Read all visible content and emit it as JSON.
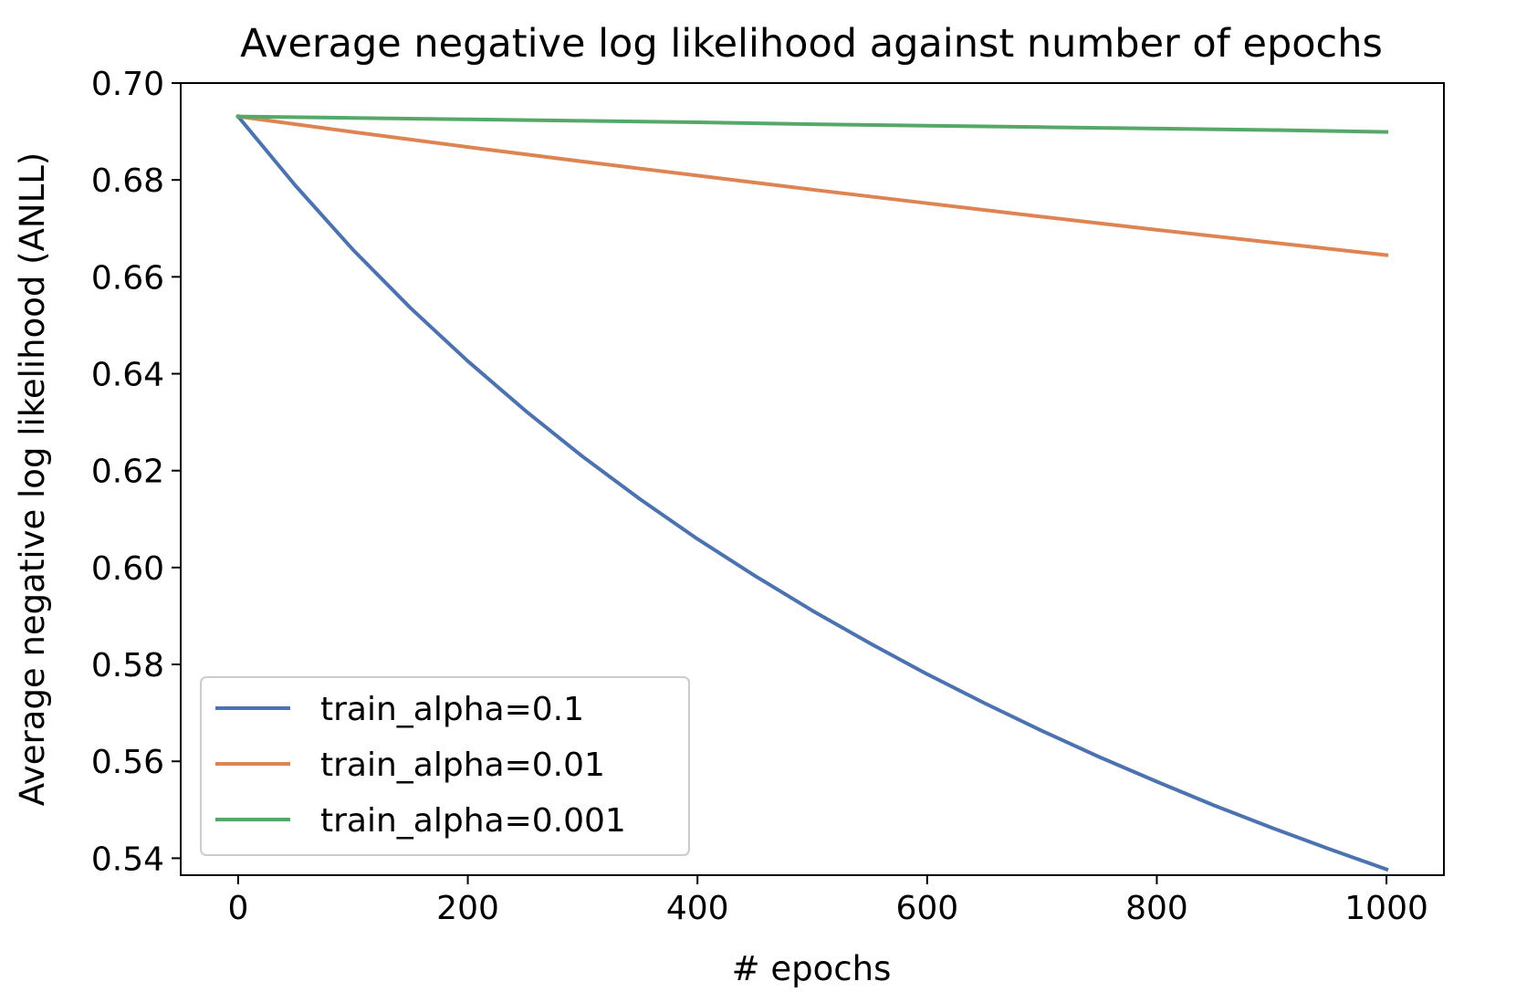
{
  "chart_data": {
    "type": "line",
    "title": "Average negative log likelihood against number of epochs",
    "xlabel": "# epochs",
    "ylabel": "Average negative log likelihood (ANLL)",
    "xlim": [
      -50,
      1050
    ],
    "ylim": [
      0.5365,
      0.7
    ],
    "xticks": [
      0,
      200,
      400,
      600,
      800,
      1000
    ],
    "xtick_labels": [
      "0",
      "200",
      "400",
      "600",
      "800",
      "1000"
    ],
    "yticks": [
      0.54,
      0.56,
      0.58,
      0.6,
      0.62,
      0.64,
      0.66,
      0.68,
      0.7
    ],
    "ytick_labels": [
      "0.54",
      "0.56",
      "0.58",
      "0.60",
      "0.62",
      "0.64",
      "0.66",
      "0.68",
      "0.70"
    ],
    "grid": false,
    "legend_position": "lower-left",
    "series": [
      {
        "name": "train_alpha=0.1",
        "color": "#4c72b0",
        "x": [
          0,
          50,
          100,
          150,
          200,
          250,
          300,
          350,
          400,
          450,
          500,
          550,
          600,
          650,
          700,
          750,
          800,
          850,
          900,
          950,
          1000
        ],
        "values": [
          0.6931,
          0.6788,
          0.6656,
          0.6536,
          0.6426,
          0.6324,
          0.6229,
          0.6141,
          0.6059,
          0.5983,
          0.5911,
          0.5844,
          0.578,
          0.572,
          0.5663,
          0.5609,
          0.5558,
          0.5509,
          0.5463,
          0.5419,
          0.5377
        ]
      },
      {
        "name": "train_alpha=0.01",
        "color": "#dd8452",
        "x": [
          0,
          100,
          200,
          300,
          400,
          500,
          600,
          700,
          800,
          900,
          1000
        ],
        "values": [
          0.6931,
          0.6899,
          0.6868,
          0.6838,
          0.6809,
          0.678,
          0.6752,
          0.6724,
          0.6697,
          0.6671,
          0.6645
        ]
      },
      {
        "name": "train_alpha=0.001",
        "color": "#55a868",
        "x": [
          0,
          100,
          200,
          300,
          400,
          500,
          600,
          700,
          800,
          900,
          1000
        ],
        "values": [
          0.6931,
          0.6928,
          0.6925,
          0.6922,
          0.6919,
          0.6915,
          0.6912,
          0.6909,
          0.6906,
          0.6903,
          0.6899
        ]
      }
    ]
  }
}
